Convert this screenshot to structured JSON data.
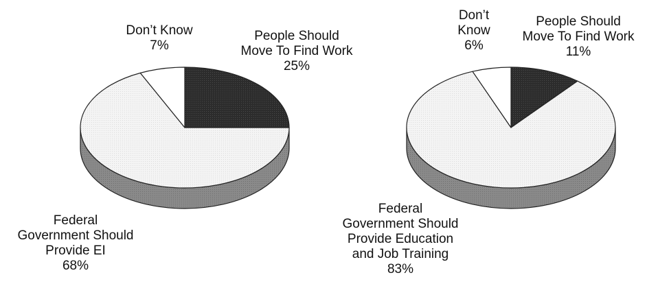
{
  "chart_data": [
    {
      "type": "pie",
      "title": "",
      "slices": [
        {
          "label": "People Should Move To Find Work",
          "label_lines": [
            "People Should",
            "Move To Find Work"
          ],
          "value": 25,
          "value_text": "25%",
          "color": "#2e2e2e"
        },
        {
          "label": "Federal Government Should Provide EI",
          "label_lines": [
            "Federal",
            "Government Should",
            "Provide EI"
          ],
          "value": 68,
          "value_text": "68%",
          "color": "#f2f2f2"
        },
        {
          "label": "Don’t Know",
          "label_lines": [
            "Don’t Know"
          ],
          "value": 7,
          "value_text": "7%",
          "color": "#ffffff"
        }
      ]
    },
    {
      "type": "pie",
      "title": "",
      "slices": [
        {
          "label": "People Should Move To Find Work",
          "label_lines": [
            "People Should",
            "Move To Find Work"
          ],
          "value": 11,
          "value_text": "11%",
          "color": "#2e2e2e"
        },
        {
          "label": "Federal Government Should Provide Education and Job Training",
          "label_lines": [
            "Federal",
            "Government Should",
            "Provide Education",
            "and Job Training"
          ],
          "value": 83,
          "value_text": "83%",
          "color": "#f2f2f2"
        },
        {
          "label": "Don’t Know",
          "label_lines": [
            "Don’t",
            "Know"
          ],
          "value": 6,
          "value_text": "6%",
          "color": "#ffffff"
        }
      ]
    }
  ]
}
